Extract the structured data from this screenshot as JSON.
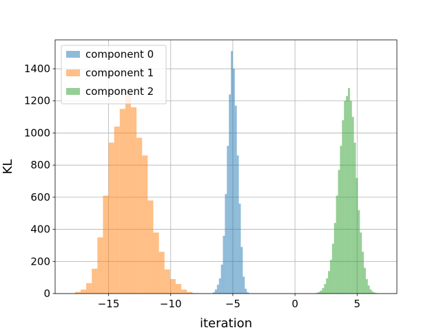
{
  "chart_data": {
    "type": "bar",
    "subtype": "histogram",
    "title": "",
    "xlabel": "iteration",
    "ylabel": "KL",
    "xlim": [
      -19.3,
      8.2
    ],
    "ylim": [
      0,
      1580
    ],
    "xticks": [
      -15,
      -10,
      -5,
      0,
      5
    ],
    "xtick_labels": [
      "−15",
      "−10",
      "−5",
      "0",
      "5"
    ],
    "yticks": [
      0,
      200,
      400,
      600,
      800,
      1000,
      1200,
      1400
    ],
    "ytick_labels": [
      "0",
      "200",
      "400",
      "600",
      "800",
      "1000",
      "1200",
      "1400"
    ],
    "grid": true,
    "legend_position": "top-left",
    "series": [
      {
        "name": "component 0",
        "color": "#1f77b4",
        "alpha": 0.5,
        "bin_edges": [
          -6.6,
          -6.44,
          -6.28,
          -6.12,
          -5.96,
          -5.8,
          -5.64,
          -5.48,
          -5.32,
          -5.16,
          -5.0,
          -4.84,
          -4.68,
          -4.52,
          -4.36,
          -4.2,
          -4.04,
          -3.88,
          -3.72
        ],
        "counts": [
          8,
          25,
          55,
          95,
          180,
          360,
          620,
          920,
          1240,
          1510,
          1400,
          1170,
          860,
          560,
          290,
          105,
          30,
          8
        ]
      },
      {
        "name": "component 1",
        "color": "#ff7f0e",
        "alpha": 0.5,
        "bin_edges": [
          -17.7,
          -17.25,
          -16.8,
          -16.35,
          -15.9,
          -15.45,
          -15.0,
          -14.55,
          -14.1,
          -13.65,
          -13.2,
          -12.75,
          -12.3,
          -11.85,
          -11.4,
          -10.95,
          -10.5,
          -10.05,
          -9.6,
          -9.15,
          -8.7,
          -8.25,
          -7.8
        ],
        "counts": [
          10,
          25,
          65,
          155,
          350,
          610,
          940,
          1040,
          1150,
          1260,
          1160,
          970,
          860,
          580,
          380,
          260,
          150,
          90,
          60,
          25,
          10,
          3
        ]
      },
      {
        "name": "component 2",
        "color": "#2ca02c",
        "alpha": 0.5,
        "bin_edges": [
          1.7,
          1.86,
          2.02,
          2.18,
          2.34,
          2.5,
          2.66,
          2.82,
          2.98,
          3.14,
          3.3,
          3.46,
          3.62,
          3.78,
          3.94,
          4.1,
          4.26,
          4.42,
          4.58,
          4.74,
          4.9,
          5.06,
          5.22,
          5.38,
          5.54,
          5.7,
          5.86,
          6.02,
          6.18,
          6.34,
          6.5,
          6.66,
          6.82
        ],
        "counts": [
          5,
          10,
          18,
          35,
          60,
          95,
          140,
          210,
          310,
          440,
          610,
          770,
          920,
          1080,
          1200,
          1230,
          1280,
          1200,
          1100,
          940,
          720,
          520,
          380,
          260,
          160,
          90,
          50,
          25,
          12,
          6,
          3,
          1
        ]
      }
    ]
  }
}
